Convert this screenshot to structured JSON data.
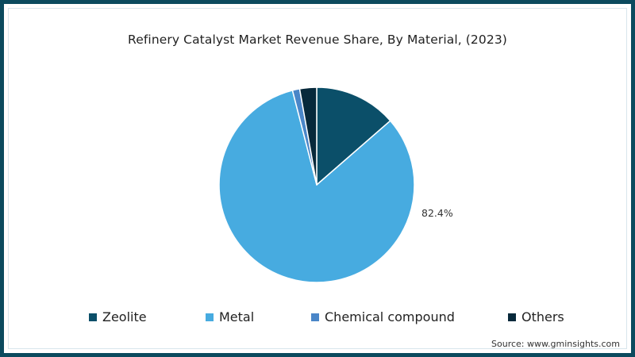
{
  "chart_data": {
    "type": "pie",
    "title": "Refinery Catalyst Market Revenue Share, By Material, (2023)",
    "categories": [
      "Zeolite",
      "Metal",
      "Chemical compound",
      "Others"
    ],
    "values": [
      13.6,
      82.4,
      1.2,
      2.8
    ],
    "colors": [
      "#0b4f69",
      "#47abe0",
      "#4a86c8",
      "#07293b"
    ],
    "data_labels": [
      {
        "category": "Metal",
        "text": "82.4%"
      }
    ],
    "legend_position": "bottom",
    "start_angle_deg": 0,
    "direction": "clockwise"
  },
  "title": "Refinery Catalyst Market Revenue Share, By Material, (2023)",
  "data_label": "82.4%",
  "legend": [
    {
      "label": "Zeolite",
      "color": "#0b4f69"
    },
    {
      "label": "Metal",
      "color": "#47abe0"
    },
    {
      "label": "Chemical compound",
      "color": "#4a86c8"
    },
    {
      "label": "Others",
      "color": "#07293b"
    }
  ],
  "source": "Source: www.gminsights.com",
  "frame_color": "#0b4a5e"
}
